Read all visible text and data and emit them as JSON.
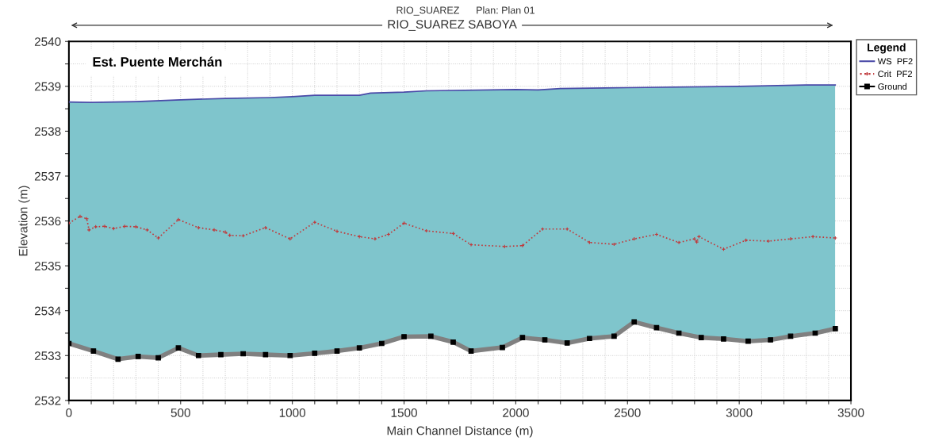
{
  "chart_data": {
    "type": "line",
    "title": "RIO_SUAREZ",
    "subtitle": "Plan: Plan 01",
    "xlabel": "Main Channel Distance (m)",
    "ylabel": "Elevation (m)",
    "legend_title": "Legend",
    "annotations": [
      "RIO_SUAREZ SABOYA",
      "Est. Puente Merchán"
    ],
    "series": [
      {
        "name": "WS  PF2",
        "type": "area",
        "color": "#4a4aa8",
        "line_style": "solid",
        "marker": "none",
        "x": [
          0,
          100,
          300,
          500,
          700,
          900,
          1000,
          1100,
          1300,
          1350,
          1500,
          1600,
          2000,
          2100,
          2200,
          2500,
          3000,
          3300,
          3430
        ],
        "values": [
          2538.65,
          2538.64,
          2538.66,
          2538.7,
          2538.73,
          2538.75,
          2538.77,
          2538.8,
          2538.8,
          2538.85,
          2538.87,
          2538.9,
          2538.93,
          2538.92,
          2538.95,
          2538.97,
          2539.0,
          2539.03,
          2539.03
        ]
      },
      {
        "name": "Crit  PF2",
        "color": "#c0393b",
        "line_style": "dotted",
        "marker": "cross",
        "x": [
          0,
          50,
          80,
          90,
          120,
          160,
          200,
          250,
          300,
          350,
          400,
          490,
          580,
          650,
          700,
          720,
          780,
          880,
          990,
          1100,
          1200,
          1300,
          1370,
          1430,
          1500,
          1600,
          1720,
          1800,
          1950,
          2030,
          2120,
          2230,
          2330,
          2440,
          2530,
          2630,
          2730,
          2800,
          2810,
          2820,
          2930,
          3030,
          3130,
          3230,
          3330,
          3430
        ],
        "values": [
          2535.95,
          2536.1,
          2536.05,
          2535.8,
          2535.87,
          2535.88,
          2535.83,
          2535.88,
          2535.87,
          2535.8,
          2535.62,
          2536.03,
          2535.85,
          2535.8,
          2535.75,
          2535.68,
          2535.67,
          2535.85,
          2535.6,
          2535.97,
          2535.77,
          2535.65,
          2535.6,
          2535.7,
          2535.95,
          2535.78,
          2535.72,
          2535.47,
          2535.43,
          2535.45,
          2535.82,
          2535.82,
          2535.52,
          2535.48,
          2535.6,
          2535.7,
          2535.52,
          2535.6,
          2535.53,
          2535.65,
          2535.37,
          2535.57,
          2535.55,
          2535.6,
          2535.65,
          2535.62
        ]
      },
      {
        "name": "Ground",
        "color": "#808080",
        "line_style": "solid",
        "marker": "square",
        "x": [
          0,
          110,
          220,
          310,
          400,
          490,
          580,
          680,
          780,
          880,
          990,
          1100,
          1200,
          1300,
          1400,
          1500,
          1620,
          1720,
          1800,
          1940,
          2030,
          2130,
          2230,
          2330,
          2440,
          2530,
          2630,
          2730,
          2830,
          2930,
          3040,
          3140,
          3230,
          3340,
          3430
        ],
        "values": [
          2533.27,
          2533.1,
          2532.92,
          2532.98,
          2532.95,
          2533.17,
          2533.0,
          2533.02,
          2533.04,
          2533.02,
          2533.0,
          2533.05,
          2533.1,
          2533.17,
          2533.27,
          2533.42,
          2533.43,
          2533.3,
          2533.1,
          2533.18,
          2533.4,
          2533.35,
          2533.28,
          2533.38,
          2533.43,
          2533.75,
          2533.62,
          2533.5,
          2533.4,
          2533.37,
          2533.32,
          2533.35,
          2533.43,
          2533.5,
          2533.6
        ]
      }
    ],
    "xlim": [
      0,
      3500
    ],
    "ylim": [
      2532,
      2540
    ],
    "xticks": [
      0,
      {
        "value": 100,
        "label": null
      },
      {
        "value": 200,
        "label": null
      },
      {
        "value": 300,
        "label": null
      },
      {
        "value": 400,
        "label": null
      },
      500,
      {
        "value": 600,
        "label": null
      },
      {
        "value": 700,
        "label": null
      },
      {
        "value": 800,
        "label": null
      },
      {
        "value": 900,
        "label": null
      },
      1000,
      {
        "value": 1100,
        "label": null
      },
      {
        "value": 1200,
        "label": null
      },
      {
        "value": 1300,
        "label": null
      },
      {
        "value": 1400,
        "label": null
      },
      1500,
      {
        "value": 1600,
        "label": null
      },
      {
        "value": 1700,
        "label": null
      },
      {
        "value": 1800,
        "label": null
      },
      {
        "value": 1900,
        "label": null
      },
      2000,
      {
        "value": 2100,
        "label": null
      },
      {
        "value": 2200,
        "label": null
      },
      {
        "value": 2300,
        "label": null
      },
      {
        "value": 2400,
        "label": null
      },
      2500,
      {
        "value": 2600,
        "label": null
      },
      {
        "value": 2700,
        "label": null
      },
      {
        "value": 2800,
        "label": null
      },
      {
        "value": 2900,
        "label": null
      },
      3000,
      {
        "value": 3100,
        "label": null
      },
      {
        "value": 3200,
        "label": null
      },
      {
        "value": 3300,
        "label": null
      },
      {
        "value": 3400,
        "label": null
      },
      3500
    ],
    "yticks": [
      2532,
      {
        "value": 2532.5,
        "label": null
      },
      2533,
      {
        "value": 2533.5,
        "label": null
      },
      2534,
      {
        "value": 2534.5,
        "label": null
      },
      2535,
      {
        "value": 2535.5,
        "label": null
      },
      2536,
      {
        "value": 2536.5,
        "label": null
      },
      2537,
      {
        "value": 2537.5,
        "label": null
      },
      2538,
      {
        "value": 2538.5,
        "label": null
      },
      2539,
      {
        "value": 2539.5,
        "label": null
      },
      2540
    ],
    "grid": true,
    "legend": "top right"
  }
}
